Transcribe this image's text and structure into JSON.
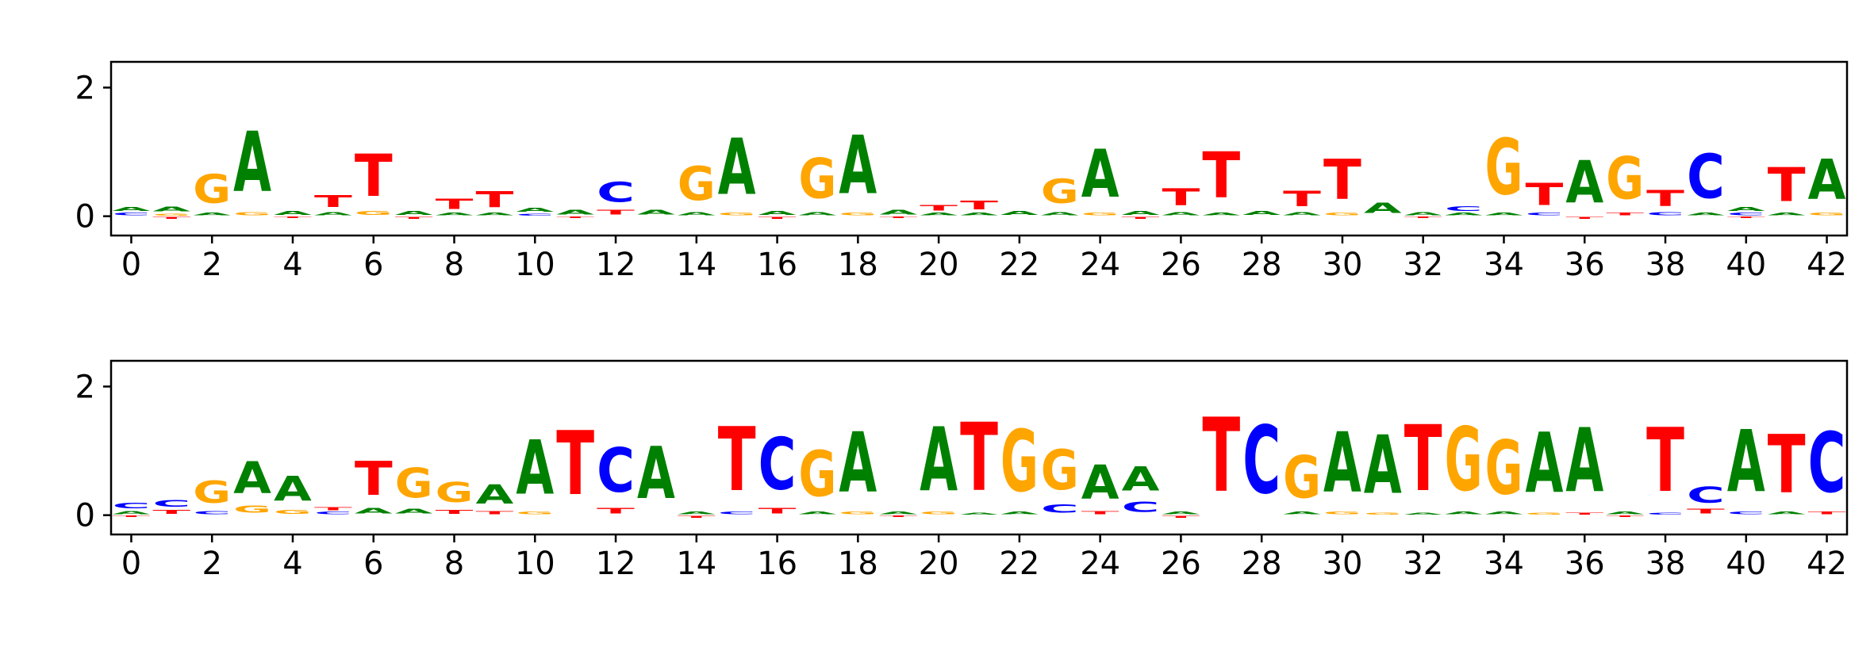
{
  "figure": {
    "title": "",
    "background": "#ffffff",
    "axis_color": "#000000",
    "tick_label_color": "#000000"
  },
  "letter_colors": {
    "A": "#008000",
    "C": "#0000FF",
    "G": "#FFA500",
    "T": "#FF0000"
  },
  "chart_data": [
    {
      "type": "sequence_logo",
      "panel": "top",
      "title": "",
      "xlabel": "",
      "ylabel": "",
      "xlim": [
        -0.5,
        42.5
      ],
      "ylim": [
        -0.3,
        2.4
      ],
      "xticks": [
        0,
        2,
        4,
        6,
        8,
        10,
        12,
        14,
        16,
        18,
        20,
        22,
        24,
        26,
        28,
        30,
        32,
        34,
        36,
        38,
        40,
        42
      ],
      "yticks": [
        0,
        2
      ],
      "grid": false,
      "legend": false,
      "positions": [
        {
          "x": 0,
          "stack": [
            [
              "C",
              0.06
            ],
            [
              "A",
              0.1
            ]
          ]
        },
        {
          "x": 1,
          "stack": [
            [
              "T",
              -0.05
            ],
            [
              "G",
              0.05
            ],
            [
              "A",
              0.12
            ]
          ]
        },
        {
          "x": 2,
          "stack": [
            [
              "A",
              0.06
            ],
            [
              "G",
              0.72
            ]
          ]
        },
        {
          "x": 3,
          "stack": [
            [
              "G",
              0.08
            ],
            [
              "A",
              1.5
            ]
          ]
        },
        {
          "x": 4,
          "stack": [
            [
              "T",
              -0.04
            ],
            [
              "A",
              0.1
            ]
          ]
        },
        {
          "x": 5,
          "stack": [
            [
              "A",
              0.08
            ],
            [
              "T",
              0.3
            ]
          ]
        },
        {
          "x": 6,
          "stack": [
            [
              "G",
              0.1
            ],
            [
              "T",
              1.05
            ]
          ]
        },
        {
          "x": 7,
          "stack": [
            [
              "T",
              -0.05
            ],
            [
              "A",
              0.1
            ]
          ]
        },
        {
          "x": 8,
          "stack": [
            [
              "A",
              0.06
            ],
            [
              "T",
              0.26
            ]
          ]
        },
        {
          "x": 9,
          "stack": [
            [
              "A",
              0.06
            ],
            [
              "T",
              0.4
            ]
          ]
        },
        {
          "x": 10,
          "stack": [
            [
              "C",
              0.05
            ],
            [
              "A",
              0.1
            ]
          ]
        },
        {
          "x": 11,
          "stack": [
            [
              "T",
              -0.04
            ],
            [
              "A",
              0.12
            ]
          ]
        },
        {
          "x": 12,
          "stack": [
            [
              "T",
              0.12
            ],
            [
              "C",
              0.5
            ]
          ]
        },
        {
          "x": 13,
          "stack": [
            [
              "A",
              0.12
            ]
          ]
        },
        {
          "x": 14,
          "stack": [
            [
              "A",
              0.08
            ],
            [
              "G",
              0.85
            ]
          ]
        },
        {
          "x": 15,
          "stack": [
            [
              "G",
              0.06
            ],
            [
              "A",
              1.4
            ]
          ]
        },
        {
          "x": 16,
          "stack": [
            [
              "T",
              -0.05
            ],
            [
              "A",
              0.1
            ]
          ]
        },
        {
          "x": 17,
          "stack": [
            [
              "A",
              0.08
            ],
            [
              "G",
              1.0
            ]
          ]
        },
        {
          "x": 18,
          "stack": [
            [
              "G",
              0.06
            ],
            [
              "A",
              1.45
            ]
          ]
        },
        {
          "x": 19,
          "stack": [
            [
              "T",
              -0.04
            ],
            [
              "A",
              0.12
            ]
          ]
        },
        {
          "x": 20,
          "stack": [
            [
              "A",
              0.06
            ],
            [
              "T",
              0.14
            ]
          ]
        },
        {
          "x": 21,
          "stack": [
            [
              "A",
              0.06
            ],
            [
              "T",
              0.22
            ]
          ]
        },
        {
          "x": 22,
          "stack": [
            [
              "A",
              0.1
            ]
          ]
        },
        {
          "x": 23,
          "stack": [
            [
              "A",
              0.08
            ],
            [
              "G",
              0.6
            ]
          ]
        },
        {
          "x": 24,
          "stack": [
            [
              "G",
              0.06
            ],
            [
              "A",
              1.2
            ]
          ]
        },
        {
          "x": 25,
          "stack": [
            [
              "T",
              -0.05
            ],
            [
              "A",
              0.1
            ]
          ]
        },
        {
          "x": 26,
          "stack": [
            [
              "A",
              0.08
            ],
            [
              "T",
              0.42
            ]
          ]
        },
        {
          "x": 27,
          "stack": [
            [
              "A",
              0.06
            ],
            [
              "T",
              1.15
            ]
          ]
        },
        {
          "x": 28,
          "stack": [
            [
              "A",
              0.1
            ]
          ]
        },
        {
          "x": 29,
          "stack": [
            [
              "A",
              0.08
            ],
            [
              "T",
              0.38
            ]
          ]
        },
        {
          "x": 30,
          "stack": [
            [
              "G",
              0.06
            ],
            [
              "T",
              1.0
            ]
          ]
        },
        {
          "x": 31,
          "stack": [
            [
              "A",
              0.26
            ]
          ]
        },
        {
          "x": 32,
          "stack": [
            [
              "T",
              -0.04
            ],
            [
              "A",
              0.08
            ]
          ]
        },
        {
          "x": 33,
          "stack": [
            [
              "A",
              0.06
            ],
            [
              "C",
              0.12
            ]
          ]
        },
        {
          "x": 34,
          "stack": [
            [
              "A",
              0.06
            ],
            [
              "G",
              1.4
            ]
          ]
        },
        {
          "x": 35,
          "stack": [
            [
              "C",
              0.06
            ],
            [
              "T",
              0.55
            ]
          ]
        },
        {
          "x": 36,
          "stack": [
            [
              "T",
              -0.05
            ],
            [
              "A",
              1.05
            ]
          ]
        },
        {
          "x": 37,
          "stack": [
            [
              "T",
              0.06
            ],
            [
              "G",
              1.05
            ]
          ]
        },
        {
          "x": 38,
          "stack": [
            [
              "C",
              0.08
            ],
            [
              "T",
              0.4
            ]
          ]
        },
        {
          "x": 39,
          "stack": [
            [
              "A",
              0.06
            ],
            [
              "C",
              1.1
            ]
          ]
        },
        {
          "x": 40,
          "stack": [
            [
              "T",
              -0.04
            ],
            [
              "C",
              0.06
            ],
            [
              "A",
              0.1
            ]
          ]
        },
        {
          "x": 41,
          "stack": [
            [
              "A",
              0.06
            ],
            [
              "T",
              0.85
            ]
          ]
        },
        {
          "x": 42,
          "stack": [
            [
              "G",
              0.06
            ],
            [
              "A",
              1.0
            ]
          ]
        }
      ]
    },
    {
      "type": "sequence_logo",
      "panel": "bottom",
      "title": "",
      "xlabel": "",
      "ylabel": "",
      "xlim": [
        -0.5,
        42.5
      ],
      "ylim": [
        -0.3,
        2.4
      ],
      "xticks": [
        0,
        2,
        4,
        6,
        8,
        10,
        12,
        14,
        16,
        18,
        20,
        22,
        24,
        26,
        28,
        30,
        32,
        34,
        36,
        38,
        40,
        42
      ],
      "yticks": [
        0,
        2
      ],
      "grid": false,
      "legend": false,
      "positions": [
        {
          "x": 0,
          "stack": [
            [
              "T",
              -0.04
            ],
            [
              "A",
              0.08
            ],
            [
              "C",
              0.14
            ]
          ]
        },
        {
          "x": 1,
          "stack": [
            [
              "T",
              0.1
            ],
            [
              "C",
              0.16
            ]
          ]
        },
        {
          "x": 2,
          "stack": [
            [
              "C",
              0.08
            ],
            [
              "G",
              0.55
            ]
          ]
        },
        {
          "x": 3,
          "stack": [
            [
              "G",
              0.18
            ],
            [
              "A",
              0.8
            ]
          ]
        },
        {
          "x": 4,
          "stack": [
            [
              "G",
              0.1
            ],
            [
              "A",
              0.62
            ]
          ]
        },
        {
          "x": 5,
          "stack": [
            [
              "C",
              0.06
            ],
            [
              "T",
              0.08
            ]
          ]
        },
        {
          "x": 6,
          "stack": [
            [
              "A",
              0.14
            ],
            [
              "T",
              0.85
            ]
          ]
        },
        {
          "x": 7,
          "stack": [
            [
              "A",
              0.12
            ],
            [
              "G",
              0.75
            ]
          ]
        },
        {
          "x": 8,
          "stack": [
            [
              "T",
              0.1
            ],
            [
              "G",
              0.5
            ]
          ]
        },
        {
          "x": 9,
          "stack": [
            [
              "T",
              0.08
            ],
            [
              "A",
              0.48
            ]
          ]
        },
        {
          "x": 10,
          "stack": [
            [
              "G",
              0.06
            ],
            [
              "A",
              1.35
            ]
          ]
        },
        {
          "x": 11,
          "stack": [
            [
              "T",
              1.6
            ]
          ]
        },
        {
          "x": 12,
          "stack": [
            [
              "T",
              0.14
            ],
            [
              "C",
              1.1
            ]
          ]
        },
        {
          "x": 13,
          "stack": [
            [
              "A",
              1.3
            ]
          ]
        },
        {
          "x": 14,
          "stack": [
            [
              "T",
              -0.05
            ],
            [
              "A",
              0.06
            ]
          ]
        },
        {
          "x": 15,
          "stack": [
            [
              "C",
              0.06
            ],
            [
              "T",
              1.6
            ]
          ]
        },
        {
          "x": 16,
          "stack": [
            [
              "T",
              0.14
            ],
            [
              "C",
              1.3
            ]
          ]
        },
        {
          "x": 17,
          "stack": [
            [
              "A",
              0.06
            ],
            [
              "G",
              1.15
            ]
          ]
        },
        {
          "x": 18,
          "stack": [
            [
              "G",
              0.06
            ],
            [
              "A",
              1.5
            ]
          ]
        },
        {
          "x": 19,
          "stack": [
            [
              "T",
              -0.04
            ],
            [
              "A",
              0.06
            ]
          ]
        },
        {
          "x": 20,
          "stack": [
            [
              "G",
              0.06
            ],
            [
              "A",
              1.6
            ]
          ]
        },
        {
          "x": 21,
          "stack": [
            [
              "A",
              0.05
            ],
            [
              "T",
              1.7
            ]
          ]
        },
        {
          "x": 22,
          "stack": [
            [
              "A",
              0.06
            ],
            [
              "G",
              1.55
            ]
          ]
        },
        {
          "x": 23,
          "stack": [
            [
              "C",
              0.2
            ],
            [
              "G",
              1.0
            ]
          ]
        },
        {
          "x": 24,
          "stack": [
            [
              "T",
              0.08
            ],
            [
              "A",
              0.85
            ]
          ]
        },
        {
          "x": 25,
          "stack": [
            [
              "C",
              0.26
            ],
            [
              "A",
              0.6
            ]
          ]
        },
        {
          "x": 26,
          "stack": [
            [
              "T",
              -0.05
            ],
            [
              "A",
              0.06
            ]
          ]
        },
        {
          "x": 27,
          "stack": [
            [
              "T",
              1.85
            ]
          ]
        },
        {
          "x": 28,
          "stack": [
            [
              "C",
              1.7
            ]
          ]
        },
        {
          "x": 29,
          "stack": [
            [
              "A",
              0.06
            ],
            [
              "G",
              1.05
            ]
          ]
        },
        {
          "x": 30,
          "stack": [
            [
              "G",
              0.06
            ],
            [
              "A",
              1.5
            ]
          ]
        },
        {
          "x": 31,
          "stack": [
            [
              "G",
              0.05
            ],
            [
              "A",
              1.45
            ]
          ]
        },
        {
          "x": 32,
          "stack": [
            [
              "A",
              0.05
            ],
            [
              "T",
              1.65
            ]
          ]
        },
        {
          "x": 33,
          "stack": [
            [
              "A",
              0.06
            ],
            [
              "G",
              1.6
            ]
          ]
        },
        {
          "x": 34,
          "stack": [
            [
              "A",
              0.06
            ],
            [
              "G",
              1.35
            ]
          ]
        },
        {
          "x": 35,
          "stack": [
            [
              "G",
              0.05
            ],
            [
              "A",
              1.5
            ]
          ]
        },
        {
          "x": 36,
          "stack": [
            [
              "T",
              0.05
            ],
            [
              "A",
              1.6
            ]
          ]
        },
        {
          "x": 37,
          "stack": [
            [
              "T",
              -0.04
            ],
            [
              "A",
              0.06
            ]
          ]
        },
        {
          "x": 38,
          "stack": [
            [
              "C",
              0.05
            ],
            [
              "T",
              1.6
            ]
          ]
        },
        {
          "x": 39,
          "stack": [
            [
              "T",
              0.12
            ],
            [
              "C",
              0.4
            ]
          ]
        },
        {
          "x": 40,
          "stack": [
            [
              "C",
              0.06
            ],
            [
              "A",
              1.55
            ]
          ]
        },
        {
          "x": 41,
          "stack": [
            [
              "A",
              0.06
            ],
            [
              "T",
              1.45
            ]
          ]
        },
        {
          "x": 42,
          "stack": [
            [
              "T",
              0.06
            ],
            [
              "C",
              1.5
            ]
          ]
        }
      ]
    }
  ]
}
